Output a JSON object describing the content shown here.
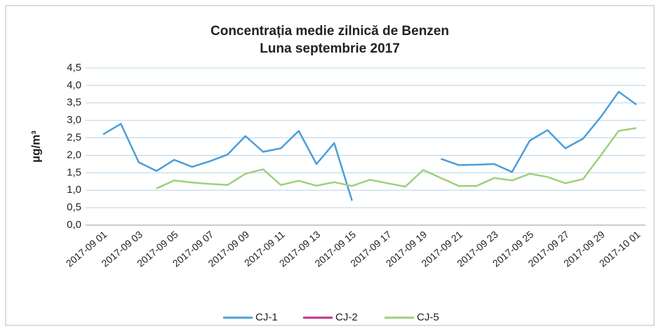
{
  "chart_data": {
    "type": "line",
    "title": "Concentrația medie zilnică de Benzen",
    "subtitle": "Luna septembrie 2017",
    "y_label": "µg/m³",
    "categories": [
      "2017-09 01",
      null,
      "2017-09 03",
      null,
      "2017-09 05",
      null,
      "2017-09 07",
      null,
      "2017-09 09",
      null,
      "2017-09 11",
      null,
      "2017-09 13",
      null,
      "2017-09 15",
      null,
      "2017-09 17",
      null,
      "2017-09 19",
      null,
      "2017-09 21",
      null,
      "2017-09 23",
      null,
      "2017-09 25",
      null,
      "2017-09 27",
      null,
      "2017-09 29",
      null,
      "2017-10 01"
    ],
    "series": [
      {
        "name": "CJ-1",
        "color": "#4a9fd8",
        "values": [
          2.6,
          2.9,
          1.8,
          1.55,
          1.87,
          1.67,
          1.83,
          2.02,
          2.55,
          2.1,
          2.2,
          2.7,
          1.75,
          2.35,
          0.7,
          null,
          null,
          null,
          null,
          1.9,
          1.72,
          1.73,
          1.75,
          1.52,
          2.42,
          2.72,
          2.2,
          2.48,
          3.1,
          3.82,
          3.45
        ]
      },
      {
        "name": "CJ-2",
        "color": "#c0308a",
        "values": [
          null,
          null,
          null,
          null,
          null,
          null,
          null,
          null,
          null,
          null,
          null,
          null,
          null,
          null,
          null,
          null,
          null,
          null,
          null,
          null,
          null,
          null,
          null,
          null,
          null,
          null,
          null,
          null,
          null,
          null,
          null
        ]
      },
      {
        "name": "CJ-5",
        "color": "#9fd07a",
        "values": [
          null,
          null,
          null,
          1.05,
          1.28,
          1.22,
          1.18,
          1.15,
          1.47,
          1.6,
          1.15,
          1.27,
          1.13,
          1.23,
          1.12,
          1.3,
          1.2,
          1.1,
          1.58,
          1.35,
          1.12,
          1.12,
          1.35,
          1.28,
          1.47,
          1.38,
          1.2,
          1.32,
          2.0,
          2.7,
          2.78
        ]
      }
    ],
    "ylim": [
      0,
      4.5
    ],
    "yticks": [
      {
        "value": 0,
        "label": "0,0"
      },
      {
        "value": 0.5,
        "label": "0,5"
      },
      {
        "value": 1,
        "label": "1,0"
      },
      {
        "value": 1.5,
        "label": "1,5"
      },
      {
        "value": 2,
        "label": "2,0"
      },
      {
        "value": 2.5,
        "label": "2,5"
      },
      {
        "value": 3,
        "label": "3,0"
      },
      {
        "value": 3.5,
        "label": "3,5"
      },
      {
        "value": 4,
        "label": "4,0"
      },
      {
        "value": 4.5,
        "label": "4,5"
      }
    ],
    "grid": true,
    "legend": "bottom"
  }
}
